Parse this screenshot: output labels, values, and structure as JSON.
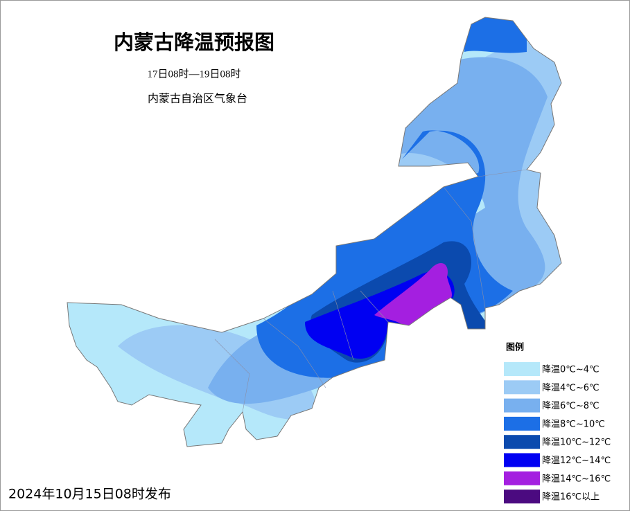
{
  "header": {
    "title": "内蒙古降温预报图",
    "period": "17日08时—19日08时",
    "issuer": "内蒙古自治区气象台"
  },
  "legend": {
    "title": "图例",
    "items": [
      {
        "label": "降温0℃~4℃",
        "color": "#b5e8fa"
      },
      {
        "label": "降温4℃~6℃",
        "color": "#9ccbf5"
      },
      {
        "label": "降温6℃~8℃",
        "color": "#78b0ef"
      },
      {
        "label": "降温8℃~10℃",
        "color": "#1c6fe6"
      },
      {
        "label": "降温10℃~12℃",
        "color": "#0b4aae"
      },
      {
        "label": "降温12℃~14℃",
        "color": "#0000f2"
      },
      {
        "label": "降温14℃~16℃",
        "color": "#a41fe0"
      },
      {
        "label": "降温16℃以上",
        "color": "#4b0a80"
      }
    ]
  },
  "footer": "2024年10月15日08时发布"
}
